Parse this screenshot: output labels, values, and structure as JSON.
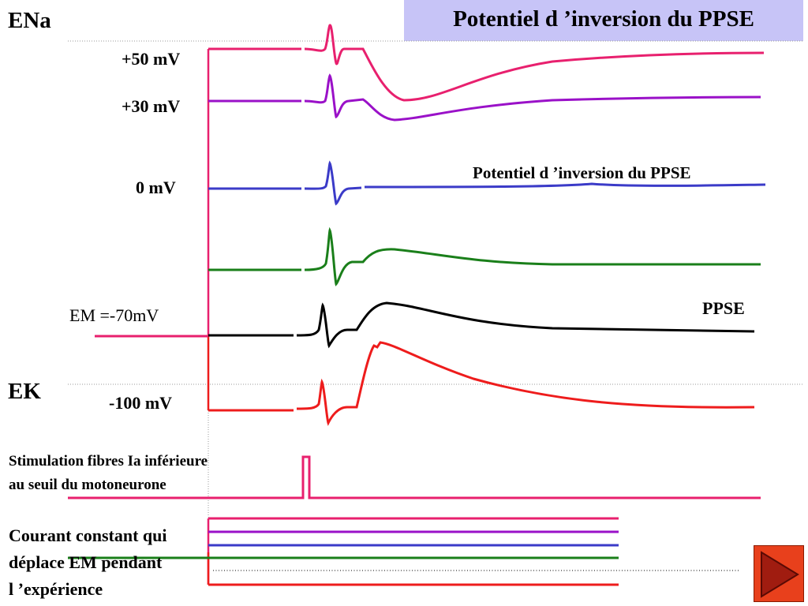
{
  "title": "Potentiel d ’inversion  du PPSE",
  "labels": {
    "ena": "ENa",
    "ek": "EK",
    "v_plus50": "+50 mV",
    "v_plus30": "+30 mV",
    "v_zero": "0 mV",
    "em": "EM =-70mV",
    "v_minus100": "-100 mV",
    "reversal": "Potentiel d ’inversion du PPSE",
    "ppse": "PPSE",
    "stim_line1": "Stimulation fibres Ia inférieure",
    "stim_line2": "au seuil du motoneurone",
    "current_line1": "Courant  constant qui",
    "current_line2": "déplace EM pendant",
    "current_line3": "l ’expérience"
  },
  "colors": {
    "plus50": "#e8206e",
    "plus30": "#9a11c8",
    "zero": "#3b3bc8",
    "green": "#1a7f1a",
    "black": "#000000",
    "minus100": "#ee1c1c",
    "stim": "#e8206e",
    "title_bg": "#c7c4f7",
    "button": "#e8401c"
  },
  "nav": {
    "next_icon": "play-triangle-icon"
  }
}
